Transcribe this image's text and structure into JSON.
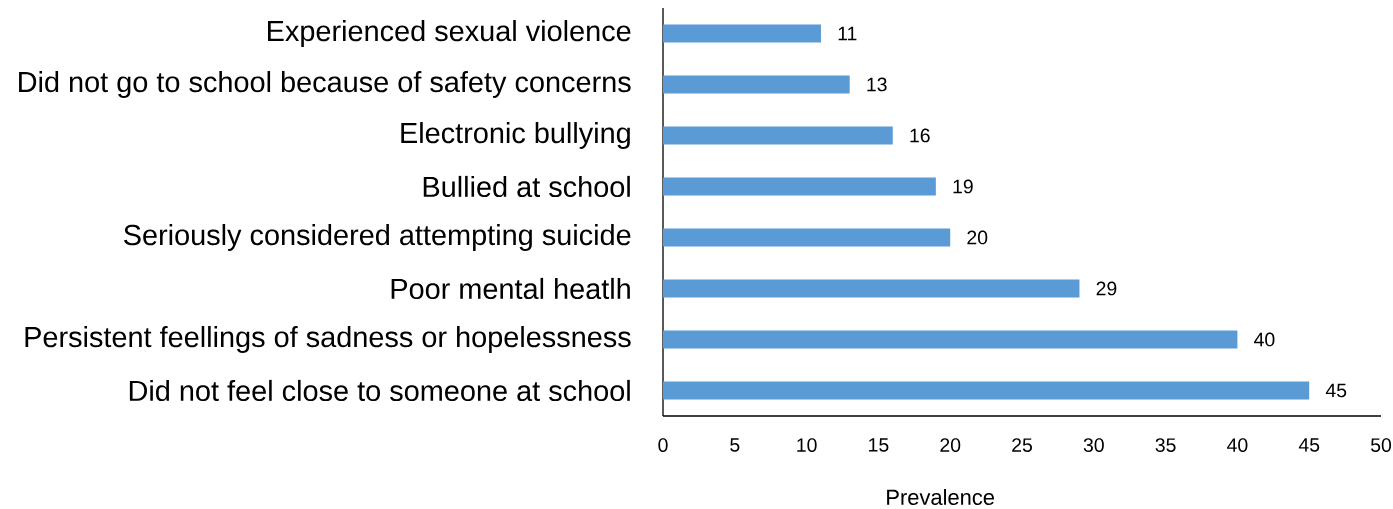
{
  "chart_data": {
    "type": "bar",
    "orientation": "horizontal",
    "categories": [
      "Experienced sexual violence",
      "Did not go to school because of safety concerns",
      "Electronic bullying",
      "Bullied at school",
      "Seriously considered attempting suicide",
      "Poor mental heatlh",
      "Persistent feellings of sadness or hopelessness",
      "Did not feel close to someone at school"
    ],
    "values": [
      11,
      13,
      16,
      19,
      20,
      29,
      40,
      45
    ],
    "color": "#5b9bd5",
    "xlabel": "Prevalence",
    "xlim": [
      0,
      50
    ],
    "xticks": [
      0,
      5,
      10,
      15,
      20,
      25,
      30,
      35,
      40,
      45,
      50
    ],
    "data_labels": true
  }
}
